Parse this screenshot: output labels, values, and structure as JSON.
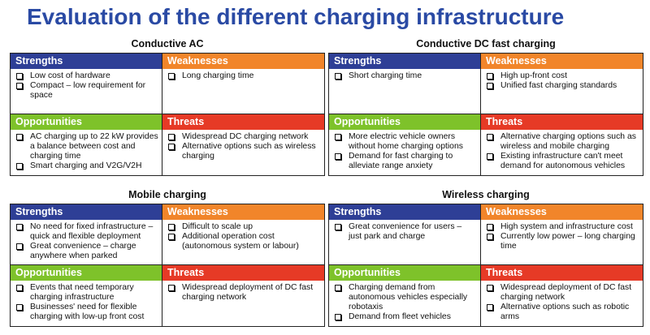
{
  "title": "Evaluation of the different charging infrastructure",
  "labels": {
    "strengths": "Strengths",
    "weaknesses": "Weaknesses",
    "opportunities": "Opportunities",
    "threats": "Threats"
  },
  "quadrants": [
    {
      "title": "Conductive AC",
      "strengths": [
        "Low cost of hardware",
        "Compact – low requirement for space"
      ],
      "weaknesses": [
        "Long charging time"
      ],
      "opportunities": [
        "AC charging up to 22 kW provides a balance between cost and charging time",
        "Smart charging and V2G/V2H"
      ],
      "threats": [
        "Widespread DC charging network",
        "Alternative options such as wireless charging"
      ]
    },
    {
      "title": "Conductive DC fast charging",
      "strengths": [
        "Short charging time"
      ],
      "weaknesses": [
        "High up-front cost",
        "Unified fast charging standards"
      ],
      "opportunities": [
        "More electric vehicle owners without home charging options",
        "Demand for fast charging to alleviate range anxiety"
      ],
      "threats": [
        "Alternative charging options such as wireless and mobile charging",
        "Existing infrastructure can't meet demand for autonomous vehicles"
      ]
    },
    {
      "title": "Mobile charging",
      "strengths": [
        "No need for fixed infrastructure – quick and flexible deployment",
        "Great convenience – charge anywhere when parked"
      ],
      "weaknesses": [
        "Difficult to scale up",
        "Additional operation cost (autonomous system or labour)"
      ],
      "opportunities": [
        "Events that need temporary charging infrastructure",
        "Businesses' need for flexible charging with low-up front cost"
      ],
      "threats": [
        "Widespread deployment of DC fast charging network"
      ]
    },
    {
      "title": "Wireless charging",
      "strengths": [
        "Great convenience for users – just park and charge"
      ],
      "weaknesses": [
        "High system and infrastructure cost",
        "Currently low power – long charging time"
      ],
      "opportunities": [
        "Charging demand from autonomous vehicles especially robotaxis",
        "Demand from fleet vehicles"
      ],
      "threats": [
        "Widespread deployment of DC fast charging network",
        "Alternative options such as robotic arms"
      ]
    }
  ]
}
